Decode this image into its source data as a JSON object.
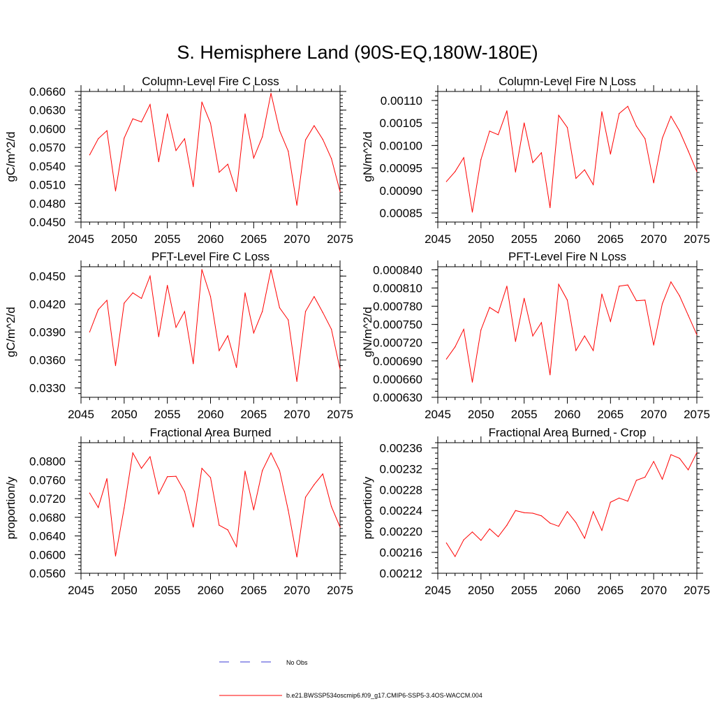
{
  "page": {
    "title": "S. Hemisphere Land (90S-EQ,180W-180E)"
  },
  "legend": {
    "obs_label": "No Obs",
    "obs_color": "#3b3bd6",
    "model_label": "b.e21.BWSSP534oscmip6.f09_g17.CMIP6-SSP5-3.4OS-WACCM.004",
    "model_color": "#ff0000"
  },
  "chart_data": [
    {
      "type": "line",
      "title": "Column-Level Fire C Loss",
      "ylabel": "gC/m^2/d",
      "xlim": [
        2045,
        2075
      ],
      "ylim": [
        0.045,
        0.066
      ],
      "xticks": [
        "2045",
        "2050",
        "2055",
        "2060",
        "2065",
        "2070",
        "2075"
      ],
      "yticks": [
        "0.0450",
        "0.0480",
        "0.0510",
        "0.0540",
        "0.0570",
        "0.0600",
        "0.0630",
        "0.0660"
      ],
      "yminor": 0.0006,
      "series": [
        {
          "color": "#ff0000",
          "x": [
            2046,
            2047,
            2048,
            2049,
            2050,
            2051,
            2052,
            2053,
            2054,
            2055,
            2056,
            2057,
            2058,
            2059,
            2060,
            2061,
            2062,
            2063,
            2064,
            2065,
            2066,
            2067,
            2068,
            2069,
            2070,
            2071,
            2072,
            2073,
            2074,
            2075
          ],
          "y": [
            0.0558,
            0.0584,
            0.0597,
            0.05,
            0.0585,
            0.0616,
            0.0611,
            0.0639,
            0.0547,
            0.0624,
            0.0565,
            0.0584,
            0.0507,
            0.0643,
            0.0609,
            0.053,
            0.0543,
            0.0499,
            0.0624,
            0.0553,
            0.0587,
            0.0657,
            0.0597,
            0.0564,
            0.0477,
            0.0582,
            0.0605,
            0.0583,
            0.0552,
            0.0499
          ]
        }
      ]
    },
    {
      "type": "line",
      "title": "Column-Level Fire N Loss",
      "ylabel": "gN/m^2/d",
      "xlim": [
        2045,
        2075
      ],
      "ylim": [
        0.00083,
        0.00112
      ],
      "xticks": [
        "2045",
        "2050",
        "2055",
        "2060",
        "2065",
        "2070",
        "2075"
      ],
      "yticks": [
        "0.00085",
        "0.00090",
        "0.00095",
        "0.00100",
        "0.00105",
        "0.00110"
      ],
      "yminor": 1e-05,
      "series": [
        {
          "color": "#ff0000",
          "x": [
            2046,
            2047,
            2048,
            2049,
            2050,
            2051,
            2052,
            2053,
            2054,
            2055,
            2056,
            2057,
            2058,
            2059,
            2060,
            2061,
            2062,
            2063,
            2064,
            2065,
            2066,
            2067,
            2068,
            2069,
            2070,
            2071,
            2072,
            2073,
            2074,
            2075
          ],
          "y": [
            0.00092,
            0.000942,
            0.000973,
            0.000852,
            0.000969,
            0.001032,
            0.001024,
            0.001077,
            0.000941,
            0.00105,
            0.000962,
            0.000984,
            0.000862,
            0.001067,
            0.00104,
            0.000927,
            0.000946,
            0.000913,
            0.001075,
            0.000981,
            0.001071,
            0.001087,
            0.001043,
            0.001015,
            0.000917,
            0.001016,
            0.001065,
            0.001032,
            0.000988,
            0.000942
          ]
        }
      ]
    },
    {
      "type": "line",
      "title": "PFT-Level Fire C Loss",
      "ylabel": "gC/m^2/d",
      "xlim": [
        2045,
        2075
      ],
      "ylim": [
        0.032,
        0.046
      ],
      "xticks": [
        "2045",
        "2050",
        "2055",
        "2060",
        "2065",
        "2070",
        "2075"
      ],
      "yticks": [
        "0.0330",
        "0.0360",
        "0.0390",
        "0.0420",
        "0.0450"
      ],
      "yminor": 0.0006,
      "series": [
        {
          "color": "#ff0000",
          "x": [
            2046,
            2047,
            2048,
            2049,
            2050,
            2051,
            2052,
            2053,
            2054,
            2055,
            2056,
            2057,
            2058,
            2059,
            2060,
            2061,
            2062,
            2063,
            2064,
            2065,
            2066,
            2067,
            2068,
            2069,
            2070,
            2071,
            2072,
            2073,
            2074,
            2075
          ],
          "y": [
            0.039,
            0.0414,
            0.0424,
            0.0354,
            0.0421,
            0.0432,
            0.0426,
            0.045,
            0.0385,
            0.044,
            0.0395,
            0.0412,
            0.0356,
            0.0457,
            0.0428,
            0.037,
            0.0386,
            0.0352,
            0.0432,
            0.0389,
            0.0412,
            0.0457,
            0.0416,
            0.0403,
            0.0337,
            0.0412,
            0.0428,
            0.0411,
            0.0393,
            0.035
          ]
        }
      ]
    },
    {
      "type": "line",
      "title": "PFT-Level Fire N Loss",
      "ylabel": "gN/m^2/d",
      "xlim": [
        2045,
        2075
      ],
      "ylim": [
        0.00063,
        0.000845
      ],
      "xticks": [
        "2045",
        "2050",
        "2055",
        "2060",
        "2065",
        "2070",
        "2075"
      ],
      "yticks": [
        "0.000630",
        "0.000660",
        "0.000690",
        "0.000720",
        "0.000750",
        "0.000780",
        "0.000810",
        "0.000840"
      ],
      "yminor": 1e-05,
      "series": [
        {
          "color": "#ff0000",
          "x": [
            2046,
            2047,
            2048,
            2049,
            2050,
            2051,
            2052,
            2053,
            2054,
            2055,
            2056,
            2057,
            2058,
            2059,
            2060,
            2061,
            2062,
            2063,
            2064,
            2065,
            2066,
            2067,
            2068,
            2069,
            2070,
            2071,
            2072,
            2073,
            2074,
            2075
          ],
          "y": [
            0.000693,
            0.000713,
            0.000742,
            0.000655,
            0.000741,
            0.000778,
            0.000769,
            0.000813,
            0.000722,
            0.000793,
            0.000731,
            0.000753,
            0.000667,
            0.000816,
            0.00079,
            0.000707,
            0.000731,
            0.000707,
            0.0008,
            0.000755,
            0.000813,
            0.000815,
            0.000789,
            0.00079,
            0.000716,
            0.000784,
            0.00082,
            0.000797,
            0.000765,
            0.000733
          ]
        }
      ]
    },
    {
      "type": "line",
      "title": "Fractional Area Burned",
      "ylabel": "proportion/y",
      "xlim": [
        2045,
        2075
      ],
      "ylim": [
        0.056,
        0.084
      ],
      "xticks": [
        "2045",
        "2050",
        "2055",
        "2060",
        "2065",
        "2070",
        "2075"
      ],
      "yticks": [
        "0.0560",
        "0.0600",
        "0.0640",
        "0.0680",
        "0.0720",
        "0.0760",
        "0.0800"
      ],
      "yminor": 0.0008,
      "series": [
        {
          "color": "#ff0000",
          "x": [
            2046,
            2047,
            2048,
            2049,
            2050,
            2051,
            2052,
            2053,
            2054,
            2055,
            2056,
            2057,
            2058,
            2059,
            2060,
            2061,
            2062,
            2063,
            2064,
            2065,
            2066,
            2067,
            2068,
            2069,
            2070,
            2071,
            2072,
            2073,
            2074,
            2075
          ],
          "y": [
            0.0732,
            0.0701,
            0.0763,
            0.0597,
            0.07,
            0.0818,
            0.0785,
            0.081,
            0.073,
            0.0767,
            0.0768,
            0.0735,
            0.0659,
            0.0785,
            0.0765,
            0.0663,
            0.0653,
            0.0617,
            0.0779,
            0.0696,
            0.078,
            0.0818,
            0.078,
            0.0695,
            0.0595,
            0.0723,
            0.075,
            0.0773,
            0.0703,
            0.0659
          ]
        }
      ]
    },
    {
      "type": "line",
      "title": "Fractional Area Burned - Crop",
      "ylabel": "proportion/y",
      "xlim": [
        2045,
        2075
      ],
      "ylim": [
        0.00212,
        0.00237
      ],
      "xticks": [
        "2045",
        "2050",
        "2055",
        "2060",
        "2065",
        "2070",
        "2075"
      ],
      "yticks": [
        "0.00212",
        "0.00216",
        "0.00220",
        "0.00224",
        "0.00228",
        "0.00232",
        "0.00236"
      ],
      "yminor": 1e-05,
      "series": [
        {
          "color": "#ff0000",
          "x": [
            2046,
            2047,
            2048,
            2049,
            2050,
            2051,
            2052,
            2053,
            2054,
            2055,
            2056,
            2057,
            2058,
            2059,
            2060,
            2061,
            2062,
            2063,
            2064,
            2065,
            2066,
            2067,
            2068,
            2069,
            2070,
            2071,
            2072,
            2073,
            2074,
            2075
          ],
          "y": [
            0.002178,
            0.002152,
            0.002184,
            0.002199,
            0.002183,
            0.002205,
            0.00219,
            0.002212,
            0.00224,
            0.002236,
            0.002235,
            0.00223,
            0.002216,
            0.00221,
            0.002238,
            0.002217,
            0.002187,
            0.002238,
            0.002202,
            0.002256,
            0.002264,
            0.002258,
            0.002298,
            0.002304,
            0.002334,
            0.0023,
            0.002347,
            0.00234,
            0.002318,
            0.002351
          ]
        }
      ]
    }
  ]
}
